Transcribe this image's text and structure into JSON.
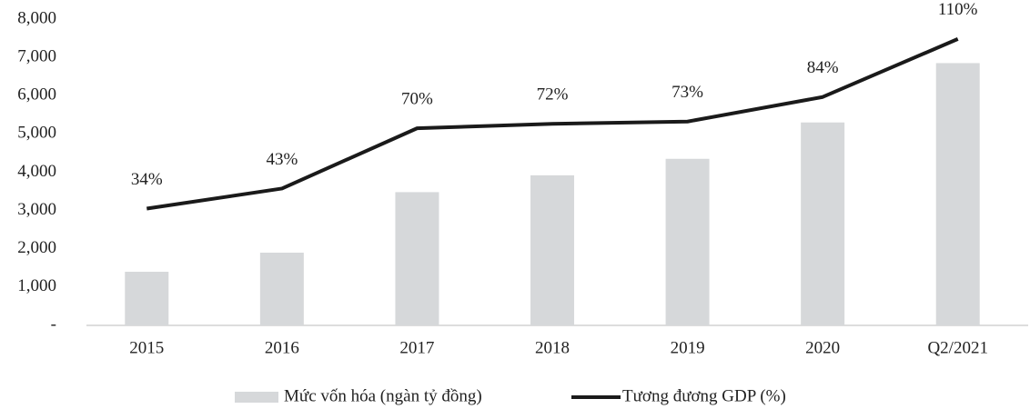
{
  "chart_data": {
    "type": "bar_line",
    "categories": [
      "2015",
      "2016",
      "2017",
      "2018",
      "2019",
      "2020",
      "Q2/2021"
    ],
    "series": [
      {
        "name": "Mức vốn hóa (ngàn tỷ đồng)",
        "type": "bar",
        "color": "#d6d8da",
        "values": [
          1400,
          1900,
          3480,
          3920,
          4350,
          5300,
          6850
        ]
      },
      {
        "name": "Tương đương GDP (%)",
        "type": "line",
        "axis": "y2",
        "color": "#1a1a1a",
        "values": [
          34,
          43,
          70,
          72,
          73,
          84,
          110
        ],
        "value_labels": [
          "34%",
          "43%",
          "70%",
          "72%",
          "73%",
          "84%",
          "110%"
        ]
      }
    ],
    "ylim": [
      0,
      8000
    ],
    "yticks": [
      {
        "value": 0,
        "label": "-"
      },
      {
        "value": 1000,
        "label": "1,000"
      },
      {
        "value": 2000,
        "label": "2,000"
      },
      {
        "value": 3000,
        "label": "3,000"
      },
      {
        "value": 4000,
        "label": "4,000"
      },
      {
        "value": 5000,
        "label": "5,000"
      },
      {
        "value": 6000,
        "label": "6,000"
      },
      {
        "value": 7000,
        "label": "7,000"
      },
      {
        "value": 8000,
        "label": "8,000"
      }
    ],
    "y2lim": [
      -18.3,
      118.9
    ],
    "legend": "bottom"
  }
}
